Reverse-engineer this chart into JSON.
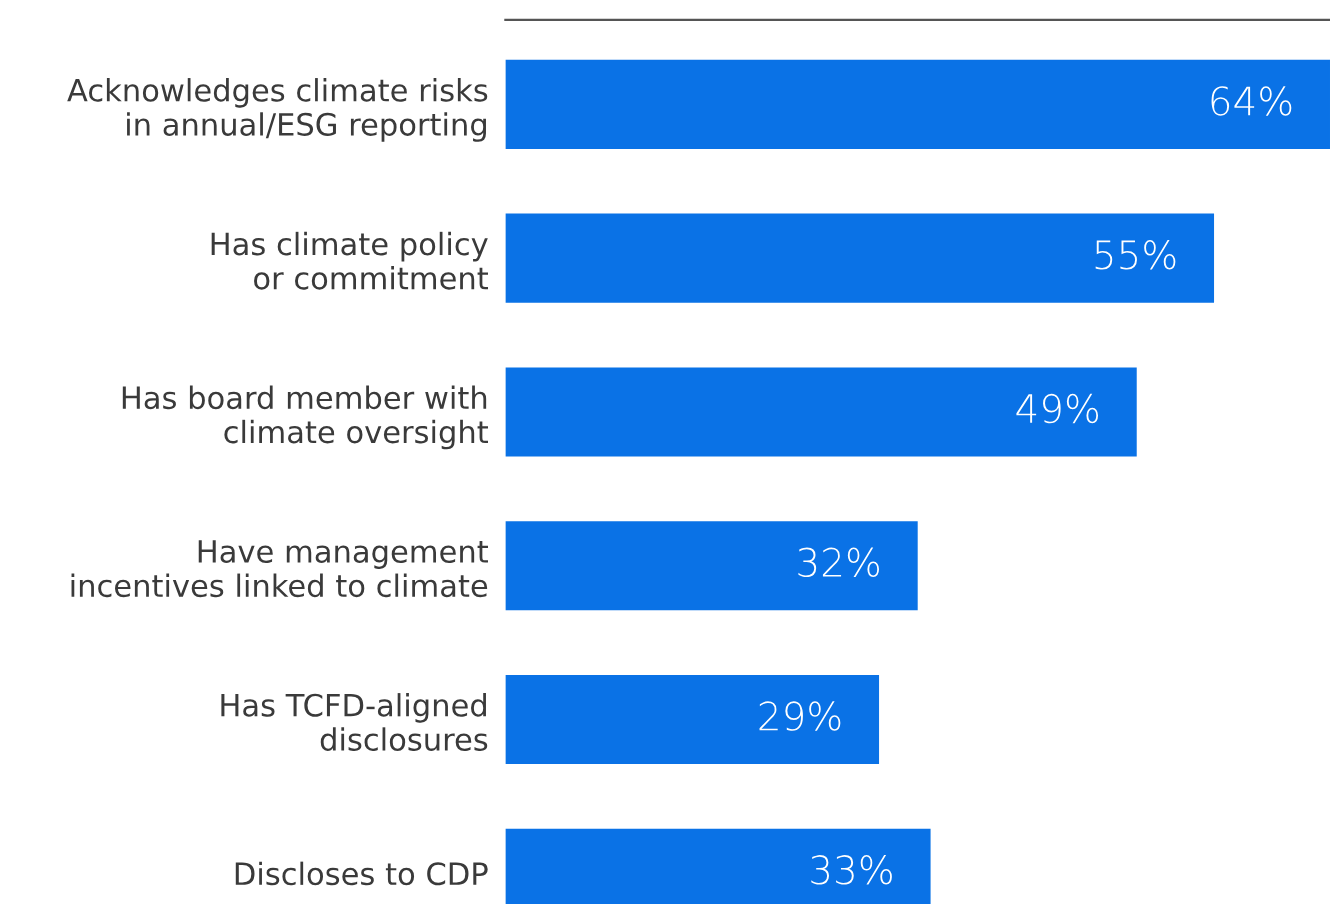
{
  "chart_data": {
    "type": "bar",
    "orientation": "horizontal",
    "categories": [
      "Acknowledges climate risks\nin annual/ESG reporting",
      "Has climate policy\nor commitment",
      "Has board member with\nclimate oversight",
      "Have management\nincentives linked to climate",
      "Has TCFD-aligned\ndisclosures",
      "Discloses to CDP"
    ],
    "values": [
      64,
      55,
      49,
      32,
      29,
      33
    ],
    "value_labels": [
      "64%",
      "55%",
      "49%",
      "32%",
      "29%",
      "33%"
    ],
    "color": "#0a72e6",
    "tick_labels": "y",
    "grid": false,
    "legend": false
  }
}
